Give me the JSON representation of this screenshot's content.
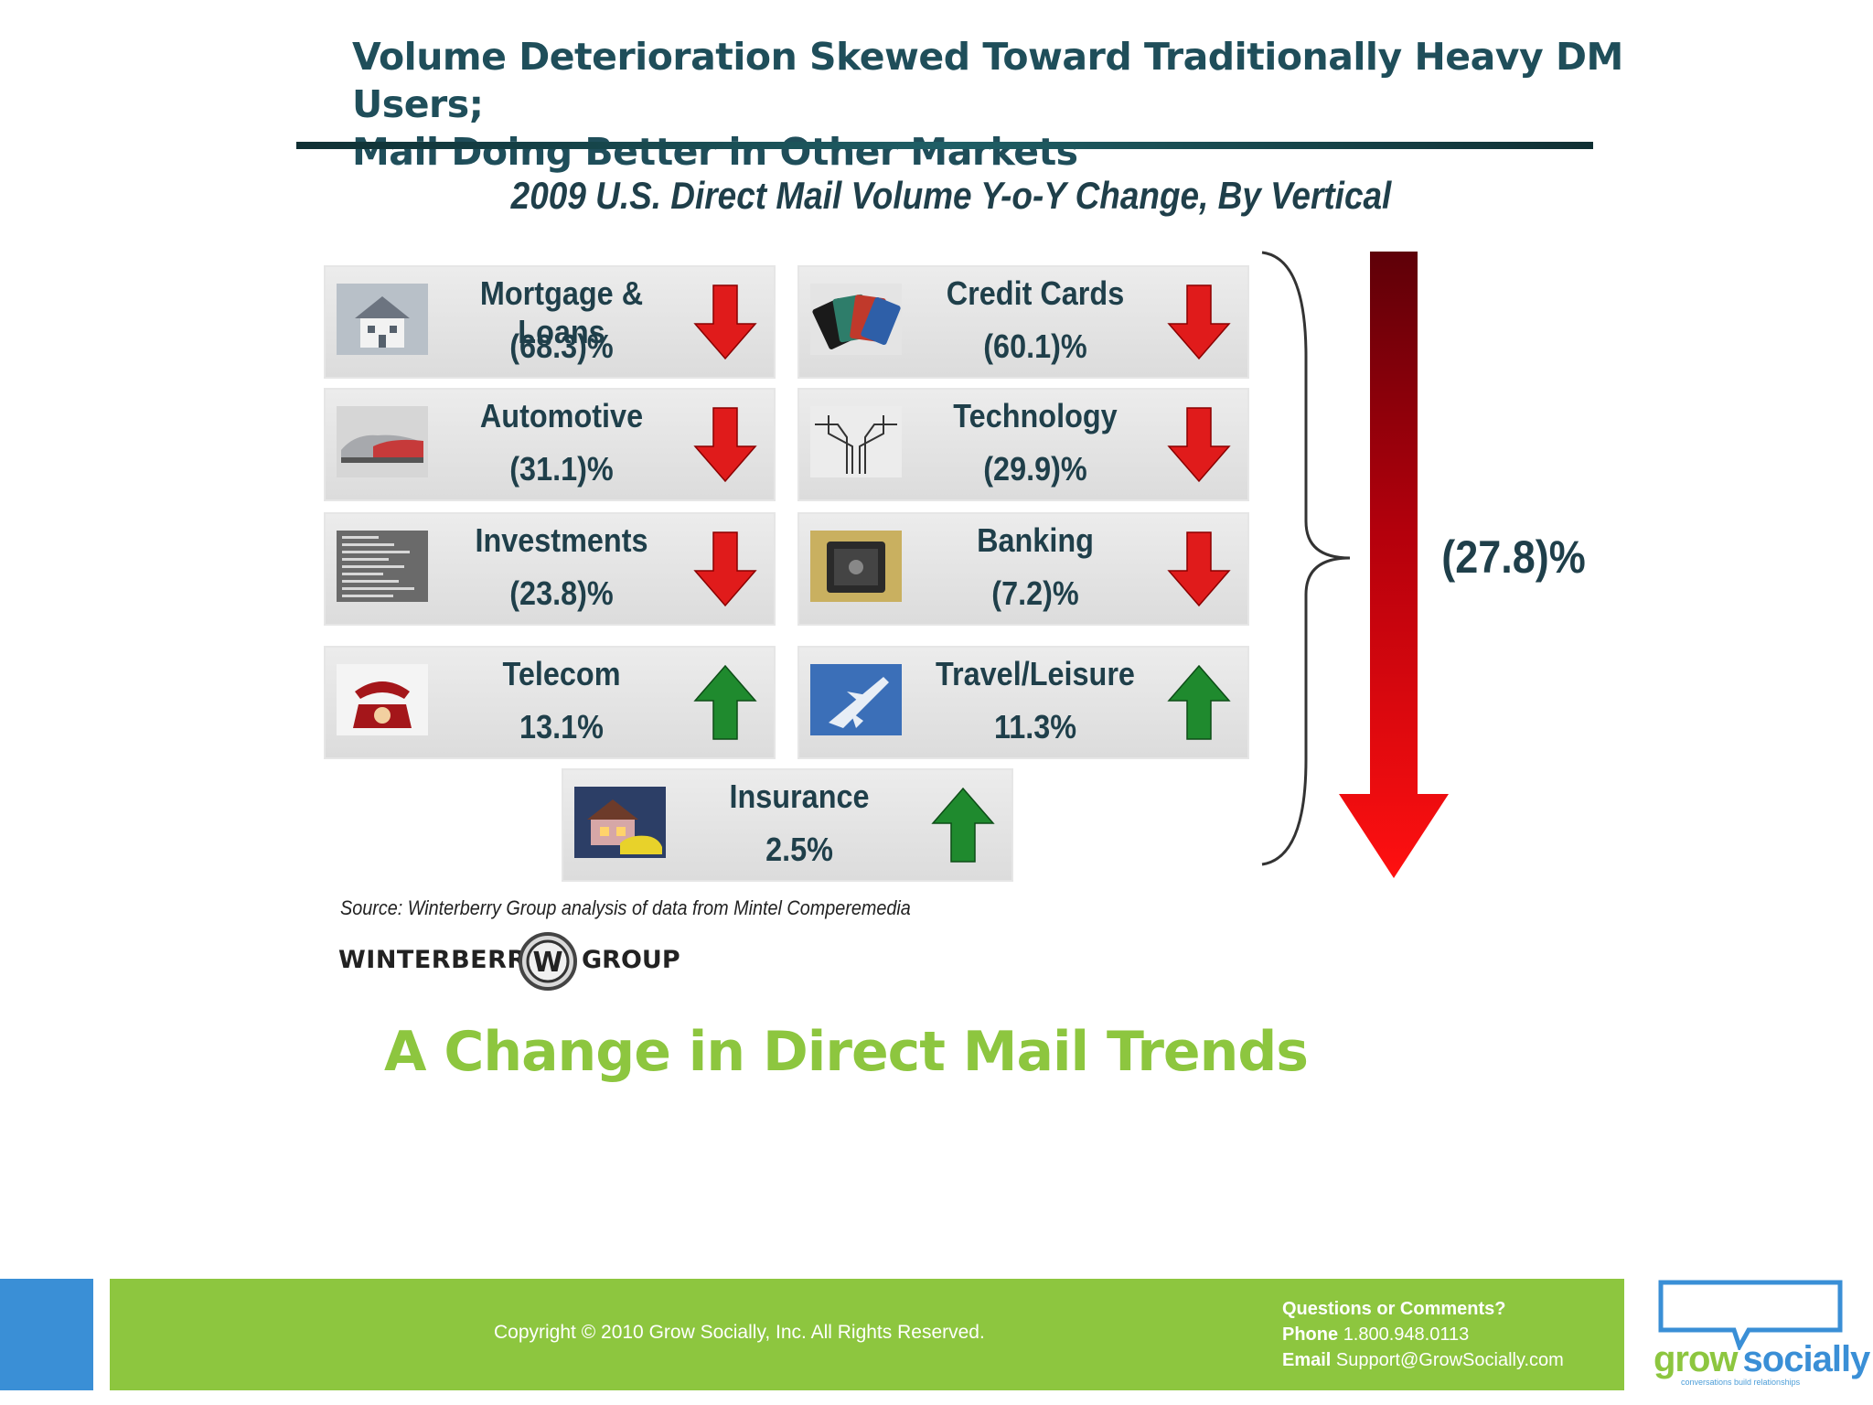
{
  "slide": {
    "title_line1": "Volume Deterioration Skewed Toward Traditionally Heavy DM Users;",
    "title_line2": "Mail Doing Better in Other Markets",
    "subtitle": "A Change in Direct Mail Trends"
  },
  "chart_data": {
    "type": "table",
    "title": "2009 U.S. Direct Mail Volume Y-o-Y Change, By Vertical",
    "unit": "%",
    "rows": [
      {
        "vertical": "Mortgage & Loans",
        "change": -68.3,
        "label": "(68.3)%",
        "direction": "down",
        "icon": "house-icon"
      },
      {
        "vertical": "Credit Cards",
        "change": -60.1,
        "label": "(60.1)%",
        "direction": "down",
        "icon": "credit-cards-icon"
      },
      {
        "vertical": "Automotive",
        "change": -31.1,
        "label": "(31.1)%",
        "direction": "down",
        "icon": "cars-icon"
      },
      {
        "vertical": "Technology",
        "change": -29.9,
        "label": "(29.9)%",
        "direction": "down",
        "icon": "circuit-icon"
      },
      {
        "vertical": "Investments",
        "change": -23.8,
        "label": "(23.8)%",
        "direction": "down",
        "icon": "stock-ticker-icon"
      },
      {
        "vertical": "Banking",
        "change": -7.2,
        "label": "(7.2)%",
        "direction": "down",
        "icon": "safe-icon"
      },
      {
        "vertical": "Telecom",
        "change": 13.1,
        "label": "13.1%",
        "direction": "up",
        "icon": "telephone-icon"
      },
      {
        "vertical": "Travel/Leisure",
        "change": 11.3,
        "label": "11.3%",
        "direction": "up",
        "icon": "airplane-icon"
      },
      {
        "vertical": "Insurance",
        "change": 2.5,
        "label": "2.5%",
        "direction": "up",
        "icon": "home-car-icon"
      }
    ],
    "overall": {
      "change": -27.8,
      "label": "(27.8)%"
    },
    "source": "Source: Winterberry Group analysis of data from Mintel Comperemedia",
    "colors": {
      "down": "#e01b1b",
      "up": "#1f8a2e",
      "overall_arrow": "#c8000a",
      "text": "#1f3f4a"
    }
  },
  "logo_winterberry": {
    "left_text": "WINTERBERRY",
    "right_text": "GROUP",
    "mark": "W"
  },
  "footer": {
    "copyright": "Copyright © 2010 Grow Socially, Inc. All Rights Reserved.",
    "questions": "Questions or Comments?",
    "phone_label": "Phone",
    "phone": "1.800.948.0113",
    "email_label": "Email",
    "email": "Support@GrowSocially.com",
    "colors": {
      "green": "#8dc63f",
      "blue": "#3a8fd6"
    }
  },
  "logo_growsocially": {
    "word1": "grow",
    "word2": "socially",
    "tagline": "conversations build relationships"
  }
}
